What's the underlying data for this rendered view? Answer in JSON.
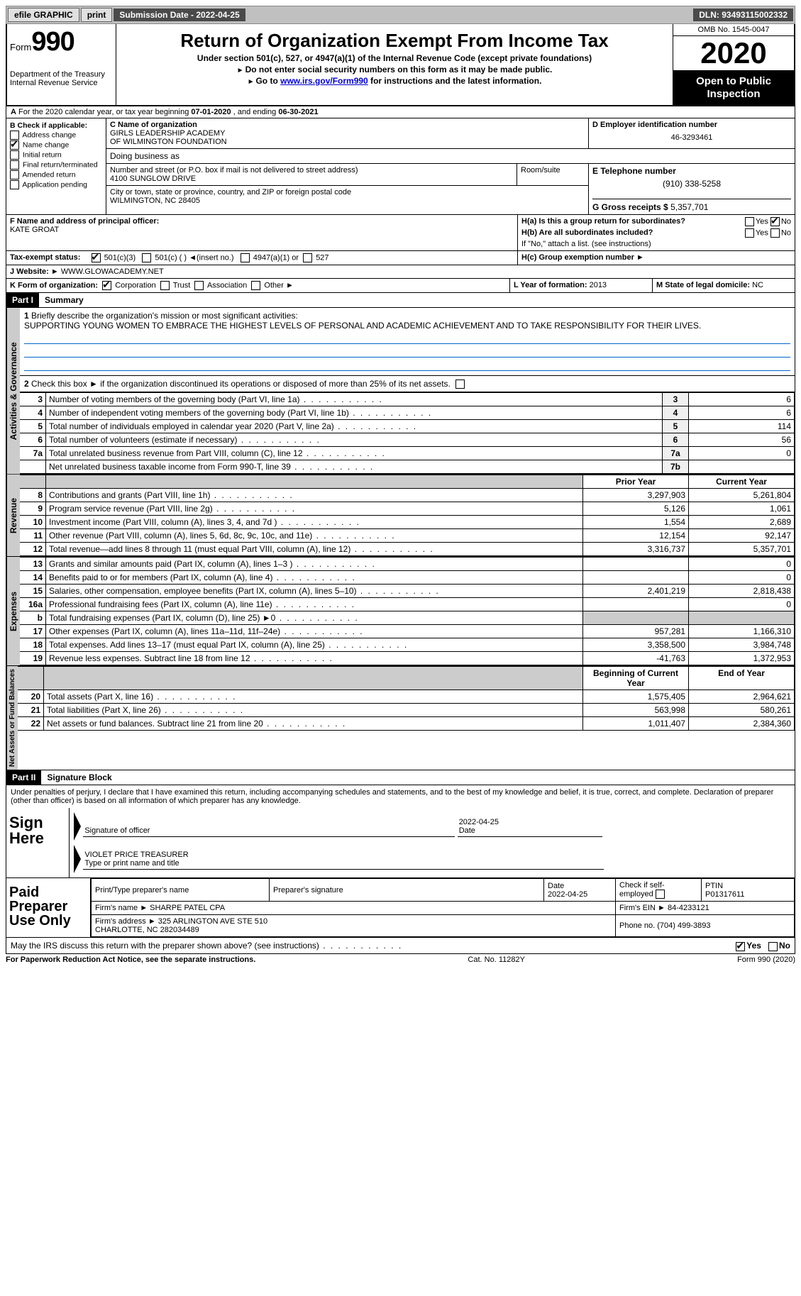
{
  "topbar": {
    "efile": "efile GRAPHIC",
    "print": "print",
    "submission_label": "Submission Date - 2022-04-25",
    "dln": "DLN: 93493115002332"
  },
  "header": {
    "form_word": "Form",
    "form_num": "990",
    "dept": "Department of the Treasury\nInternal Revenue Service",
    "title": "Return of Organization Exempt From Income Tax",
    "sub1": "Under section 501(c), 527, or 4947(a)(1) of the Internal Revenue Code (except private foundations)",
    "sub2": "Do not enter social security numbers on this form as it may be made public.",
    "sub3_pre": "Go to ",
    "sub3_link": "www.irs.gov/Form990",
    "sub3_post": " for instructions and the latest information.",
    "omb": "OMB No. 1545-0047",
    "year": "2020",
    "otp1": "Open to Public",
    "otp2": "Inspection"
  },
  "sectionA": {
    "text_a": "A",
    "text": "For the 2020 calendar year, or tax year beginning ",
    "begin": "07-01-2020",
    "mid": " , and ending ",
    "end": "06-30-2021"
  },
  "blockB": {
    "title": "B Check if applicable:",
    "items": [
      {
        "label": "Address change",
        "checked": false
      },
      {
        "label": "Name change",
        "checked": true
      },
      {
        "label": "Initial return",
        "checked": false
      },
      {
        "label": "Final return/terminated",
        "checked": false
      },
      {
        "label": "Amended return",
        "checked": false
      },
      {
        "label": "Application pending",
        "checked": false
      }
    ]
  },
  "blockC": {
    "label": "C Name of organization",
    "name": "GIRLS LEADERSHIP ACADEMY\nOF WILMINGTON FOUNDATION",
    "dba_label": "Doing business as",
    "addr_label": "Number and street (or P.O. box if mail is not delivered to street address)",
    "room_label": "Room/suite",
    "addr": "4100 SUNGLOW DRIVE",
    "city_label": "City or town, state or province, country, and ZIP or foreign postal code",
    "city": "WILMINGTON, NC  28405"
  },
  "blockD": {
    "label": "D Employer identification number",
    "val": "46-3293461"
  },
  "blockE": {
    "label": "E Telephone number",
    "val": "(910) 338-5258"
  },
  "blockG": {
    "label": "G Gross receipts $",
    "val": "5,357,701"
  },
  "blockF": {
    "label": "F Name and address of principal officer:",
    "val": "KATE GROAT"
  },
  "blockH": {
    "ha": "H(a)  Is this a group return for subordinates?",
    "hb": "H(b)  Are all subordinates included?",
    "hnote": "If \"No,\" attach a list. (see instructions)",
    "hc": "H(c)  Group exemption number ►",
    "yes": "Yes",
    "no": "No"
  },
  "taxExempt": {
    "label": "Tax-exempt status:",
    "o1": "501(c)(3)",
    "o2": "501(c) (  ) ◄(insert no.)",
    "o3": "4947(a)(1) or",
    "o4": "527"
  },
  "blockJ": {
    "label": "J    Website: ►",
    "val": "WWW.GLOWACADEMY.NET"
  },
  "blockK": {
    "label": "K Form of organization:",
    "o1": "Corporation",
    "o2": "Trust",
    "o3": "Association",
    "o4": "Other ►"
  },
  "blockL": {
    "label": "L Year of formation:",
    "val": "2013"
  },
  "blockM": {
    "label": "M State of legal domicile:",
    "val": "NC"
  },
  "part1": {
    "hdr": "Part I",
    "title": "Summary",
    "tab_gov": "Activities & Governance",
    "tab_rev": "Revenue",
    "tab_exp": "Expenses",
    "tab_net": "Net Assets or Fund Balances",
    "l1_label": "Briefly describe the organization's mission or most significant activities:",
    "l1_text": "SUPPORTING YOUNG WOMEN TO EMBRACE THE HIGHEST LEVELS OF PERSONAL AND ACADEMIC ACHIEVEMENT AND TO TAKE RESPONSIBILITY FOR THEIR LIVES.",
    "l2": "Check this box ►      if the organization discontinued its operations or disposed of more than 25% of its net assets.",
    "lines_gov": [
      {
        "n": "3",
        "t": "Number of voting members of the governing body (Part VI, line 1a)",
        "k": "3",
        "v": "6"
      },
      {
        "n": "4",
        "t": "Number of independent voting members of the governing body (Part VI, line 1b)",
        "k": "4",
        "v": "6"
      },
      {
        "n": "5",
        "t": "Total number of individuals employed in calendar year 2020 (Part V, line 2a)",
        "k": "5",
        "v": "114"
      },
      {
        "n": "6",
        "t": "Total number of volunteers (estimate if necessary)",
        "k": "6",
        "v": "56"
      },
      {
        "n": "7a",
        "t": "Total unrelated business revenue from Part VIII, column (C), line 12",
        "k": "7a",
        "v": "0"
      },
      {
        "n": "",
        "t": "Net unrelated business taxable income from Form 990-T, line 39",
        "k": "7b",
        "v": ""
      }
    ],
    "col_prior": "Prior Year",
    "col_curr": "Current Year",
    "lines_rev": [
      {
        "n": "8",
        "t": "Contributions and grants (Part VIII, line 1h)",
        "p": "3,297,903",
        "c": "5,261,804"
      },
      {
        "n": "9",
        "t": "Program service revenue (Part VIII, line 2g)",
        "p": "5,126",
        "c": "1,061"
      },
      {
        "n": "10",
        "t": "Investment income (Part VIII, column (A), lines 3, 4, and 7d )",
        "p": "1,554",
        "c": "2,689"
      },
      {
        "n": "11",
        "t": "Other revenue (Part VIII, column (A), lines 5, 6d, 8c, 9c, 10c, and 11e)",
        "p": "12,154",
        "c": "92,147"
      },
      {
        "n": "12",
        "t": "Total revenue—add lines 8 through 11 (must equal Part VIII, column (A), line 12)",
        "p": "3,316,737",
        "c": "5,357,701"
      }
    ],
    "lines_exp": [
      {
        "n": "13",
        "t": "Grants and similar amounts paid (Part IX, column (A), lines 1–3 )",
        "p": "",
        "c": "0"
      },
      {
        "n": "14",
        "t": "Benefits paid to or for members (Part IX, column (A), line 4)",
        "p": "",
        "c": "0"
      },
      {
        "n": "15",
        "t": "Salaries, other compensation, employee benefits (Part IX, column (A), lines 5–10)",
        "p": "2,401,219",
        "c": "2,818,438"
      },
      {
        "n": "16a",
        "t": "Professional fundraising fees (Part IX, column (A), line 11e)",
        "p": "",
        "c": "0"
      },
      {
        "n": "b",
        "t": "Total fundraising expenses (Part IX, column (D), line 25) ►0",
        "p": "shade",
        "c": "shade"
      },
      {
        "n": "17",
        "t": "Other expenses (Part IX, column (A), lines 11a–11d, 11f–24e)",
        "p": "957,281",
        "c": "1,166,310"
      },
      {
        "n": "18",
        "t": "Total expenses. Add lines 13–17 (must equal Part IX, column (A), line 25)",
        "p": "3,358,500",
        "c": "3,984,748"
      },
      {
        "n": "19",
        "t": "Revenue less expenses. Subtract line 18 from line 12",
        "p": "-41,763",
        "c": "1,372,953"
      }
    ],
    "col_begin": "Beginning of Current Year",
    "col_end": "End of Year",
    "lines_net": [
      {
        "n": "20",
        "t": "Total assets (Part X, line 16)",
        "p": "1,575,405",
        "c": "2,964,621"
      },
      {
        "n": "21",
        "t": "Total liabilities (Part X, line 26)",
        "p": "563,998",
        "c": "580,261"
      },
      {
        "n": "22",
        "t": "Net assets or fund balances. Subtract line 21 from line 20",
        "p": "1,011,407",
        "c": "2,384,360"
      }
    ]
  },
  "part2": {
    "hdr": "Part II",
    "title": "Signature Block",
    "decl": "Under penalties of perjury, I declare that I have examined this return, including accompanying schedules and statements, and to the best of my knowledge and belief, it is true, correct, and complete. Declaration of preparer (other than officer) is based on all information of which preparer has any knowledge.",
    "sign_here": "Sign Here",
    "sig_officer": "Signature of officer",
    "sig_date_val": "2022-04-25",
    "sig_date": "Date",
    "sig_name": "VIOLET PRICE  TREASURER",
    "sig_name_lbl": "Type or print name and title",
    "paid": "Paid Preparer Use Only",
    "p_name_lbl": "Print/Type preparer's name",
    "p_sig_lbl": "Preparer's signature",
    "p_date_lbl": "Date",
    "p_date": "2022-04-25",
    "p_self_lbl": "Check        if self-employed",
    "p_ptin_lbl": "PTIN",
    "p_ptin": "P01317611",
    "p_firm_lbl": "Firm's name    ►",
    "p_firm": "SHARPE PATEL CPA",
    "p_ein_lbl": "Firm's EIN ►",
    "p_ein": "84-4233121",
    "p_addr_lbl": "Firm's address ►",
    "p_addr": "325 ARLINGTON AVE STE 510\nCHARLOTTE, NC  282034489",
    "p_phone_lbl": "Phone no.",
    "p_phone": "(704) 499-3893",
    "discuss": "May the IRS discuss this return with the preparer shown above? (see instructions)",
    "yes": "Yes",
    "no": "No"
  },
  "footer": {
    "left": "For Paperwork Reduction Act Notice, see the separate instructions.",
    "mid": "Cat. No. 11282Y",
    "right": "Form 990 (2020)"
  }
}
